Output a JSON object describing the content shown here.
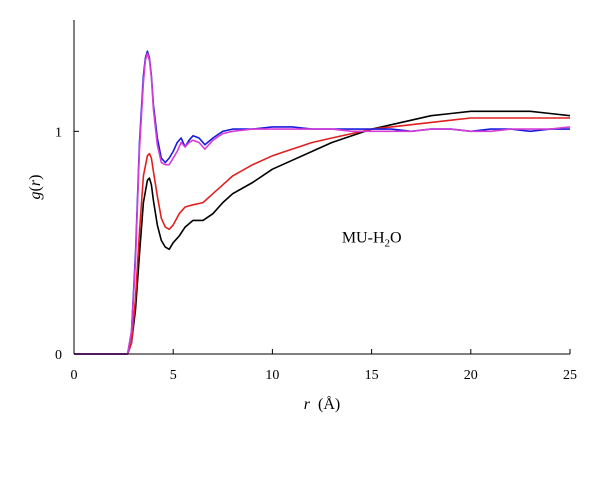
{
  "chart_data": {
    "type": "line",
    "title": "",
    "xlabel_var": "r",
    "xlabel_unit": "(Å)",
    "ylabel_var": "g",
    "ylabel_arg": "r",
    "xlim": [
      0,
      25
    ],
    "ylim": [
      0,
      1.5
    ],
    "xticks": [
      0,
      5,
      10,
      15,
      20,
      25
    ],
    "yticks": [
      0,
      1
    ],
    "grid": false,
    "annotation": {
      "prefix": "MU-H",
      "subscript": "2",
      "suffix": "O"
    },
    "series": [
      {
        "color": "#000000",
        "x": [
          0,
          2.7,
          2.9,
          3.1,
          3.3,
          3.5,
          3.7,
          3.8,
          3.9,
          4.0,
          4.2,
          4.4,
          4.6,
          4.8,
          5.0,
          5.3,
          5.6,
          6.0,
          6.5,
          7.0,
          7.5,
          8.0,
          9.0,
          10.0,
          11.0,
          12.0,
          13.0,
          14.0,
          15.0,
          16.0,
          17.0,
          18.0,
          19.0,
          20.0,
          21.0,
          22.0,
          23.0,
          24.0,
          25.0
        ],
        "y": [
          0,
          0,
          0.05,
          0.2,
          0.45,
          0.68,
          0.78,
          0.79,
          0.76,
          0.69,
          0.58,
          0.51,
          0.48,
          0.47,
          0.5,
          0.53,
          0.57,
          0.6,
          0.6,
          0.63,
          0.68,
          0.72,
          0.77,
          0.83,
          0.87,
          0.91,
          0.95,
          0.98,
          1.01,
          1.03,
          1.05,
          1.07,
          1.08,
          1.09,
          1.09,
          1.09,
          1.09,
          1.08,
          1.07
        ]
      },
      {
        "color": "#e02020",
        "x": [
          0,
          2.7,
          2.9,
          3.1,
          3.3,
          3.5,
          3.7,
          3.8,
          3.9,
          4.0,
          4.2,
          4.4,
          4.6,
          4.8,
          5.0,
          5.3,
          5.6,
          6.0,
          6.5,
          7.0,
          7.5,
          8.0,
          9.0,
          10.0,
          11.0,
          12.0,
          13.0,
          14.0,
          15.0,
          16.0,
          17.0,
          18.0,
          19.0,
          20.0,
          21.0,
          22.0,
          23.0,
          24.0,
          25.0
        ],
        "y": [
          0,
          0,
          0.05,
          0.25,
          0.55,
          0.8,
          0.89,
          0.9,
          0.88,
          0.82,
          0.71,
          0.61,
          0.57,
          0.56,
          0.58,
          0.63,
          0.66,
          0.67,
          0.68,
          0.72,
          0.76,
          0.8,
          0.85,
          0.89,
          0.92,
          0.95,
          0.97,
          0.99,
          1.01,
          1.02,
          1.03,
          1.04,
          1.05,
          1.06,
          1.06,
          1.06,
          1.06,
          1.06,
          1.06
        ]
      },
      {
        "color": "#1a1adc",
        "x": [
          0,
          2.7,
          2.9,
          3.1,
          3.3,
          3.5,
          3.6,
          3.7,
          3.8,
          3.9,
          4.0,
          4.2,
          4.4,
          4.6,
          4.8,
          5.0,
          5.2,
          5.4,
          5.6,
          5.8,
          6.0,
          6.3,
          6.6,
          7.0,
          7.5,
          8.0,
          9.0,
          10.0,
          11.0,
          12.0,
          13.0,
          14.0,
          15.0,
          16.0,
          17.0,
          18.0,
          19.0,
          20.0,
          21.0,
          22.0,
          23.0,
          24.0,
          25.0
        ],
        "y": [
          0,
          0,
          0.1,
          0.45,
          0.95,
          1.25,
          1.33,
          1.36,
          1.33,
          1.25,
          1.12,
          0.97,
          0.88,
          0.86,
          0.88,
          0.91,
          0.95,
          0.97,
          0.93,
          0.96,
          0.98,
          0.97,
          0.94,
          0.97,
          1.0,
          1.01,
          1.01,
          1.02,
          1.02,
          1.01,
          1.01,
          1.01,
          1.01,
          1.01,
          1.0,
          1.01,
          1.01,
          1.0,
          1.01,
          1.01,
          1.0,
          1.01,
          1.01
        ]
      },
      {
        "color": "#d63cd6",
        "x": [
          0,
          2.7,
          2.9,
          3.1,
          3.3,
          3.5,
          3.6,
          3.7,
          3.8,
          3.9,
          4.0,
          4.2,
          4.4,
          4.6,
          4.8,
          5.0,
          5.2,
          5.4,
          5.6,
          5.8,
          6.0,
          6.3,
          6.6,
          7.0,
          7.5,
          8.0,
          9.0,
          10.0,
          11.0,
          12.0,
          13.0,
          14.0,
          15.0,
          16.0,
          17.0,
          18.0,
          19.0,
          20.0,
          21.0,
          22.0,
          23.0,
          24.0,
          25.0
        ],
        "y": [
          0,
          0,
          0.1,
          0.42,
          0.92,
          1.22,
          1.32,
          1.35,
          1.32,
          1.24,
          1.1,
          0.94,
          0.86,
          0.85,
          0.85,
          0.88,
          0.91,
          0.95,
          0.93,
          0.95,
          0.96,
          0.95,
          0.92,
          0.96,
          0.99,
          1.0,
          1.01,
          1.01,
          1.01,
          1.01,
          1.01,
          1.0,
          1.0,
          1.0,
          1.0,
          1.01,
          1.01,
          1.0,
          1.0,
          1.01,
          1.01,
          1.01,
          1.02
        ]
      }
    ]
  }
}
